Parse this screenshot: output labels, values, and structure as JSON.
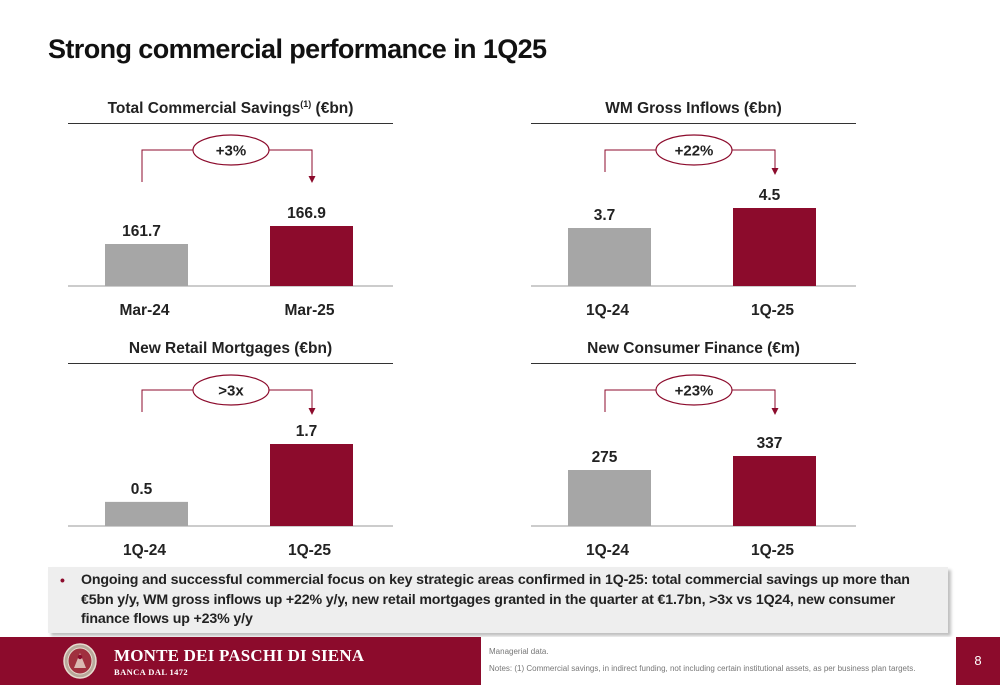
{
  "page": {
    "title": "Strong commercial performance in 1Q25",
    "page_number": "8"
  },
  "colors": {
    "accent": "#8c0b2c",
    "previous_bar": "#a6a6a6",
    "current_bar": "#8c0b2c"
  },
  "chart_data": [
    {
      "type": "bar",
      "title": "Total Commercial Savings",
      "title_superscript": "(1)",
      "title_suffix": " (€bn)",
      "categories": [
        "Mar-24",
        "Mar-25"
      ],
      "values": [
        161.7,
        166.9
      ],
      "value_labels": [
        "161.7",
        "166.9"
      ],
      "change_label": "+3%"
    },
    {
      "type": "bar",
      "title": "WM Gross Inflows (€bn)",
      "categories": [
        "1Q-24",
        "1Q-25"
      ],
      "values": [
        3.7,
        4.5
      ],
      "value_labels": [
        "3.7",
        "4.5"
      ],
      "change_label": "+22%"
    },
    {
      "type": "bar",
      "title": "New Retail Mortgages (€bn)",
      "categories": [
        "1Q-24",
        "1Q-25"
      ],
      "values": [
        0.5,
        1.7
      ],
      "value_labels": [
        "0.5",
        "1.7"
      ],
      "change_label": ">3x"
    },
    {
      "type": "bar",
      "title": "New Consumer Finance  (€m)",
      "categories": [
        "1Q-24",
        "1Q-25"
      ],
      "values": [
        275,
        337
      ],
      "value_labels": [
        "275",
        "337"
      ],
      "change_label": "+23%"
    }
  ],
  "summary": {
    "bullet_icon": "bullet-dot",
    "text": "Ongoing and successful commercial focus on key strategic areas confirmed in 1Q-25: total commercial savings up more than €5bn y/y, WM gross inflows up +22% y/y, new retail mortgages granted in the quarter at €1.7bn, >3x vs 1Q24, new consumer finance flows up +23% y/y"
  },
  "footer": {
    "bank_name": "MONTE DEI PASCHI DI SIENA",
    "bank_since": "BANCA DAL 1472",
    "logo_icon": "bank-seal-icon",
    "note_1": "Managerial data.",
    "note_2": "Notes: (1) Commercial savings, in indirect funding, not including certain institutional assets, as per business plan targets."
  }
}
